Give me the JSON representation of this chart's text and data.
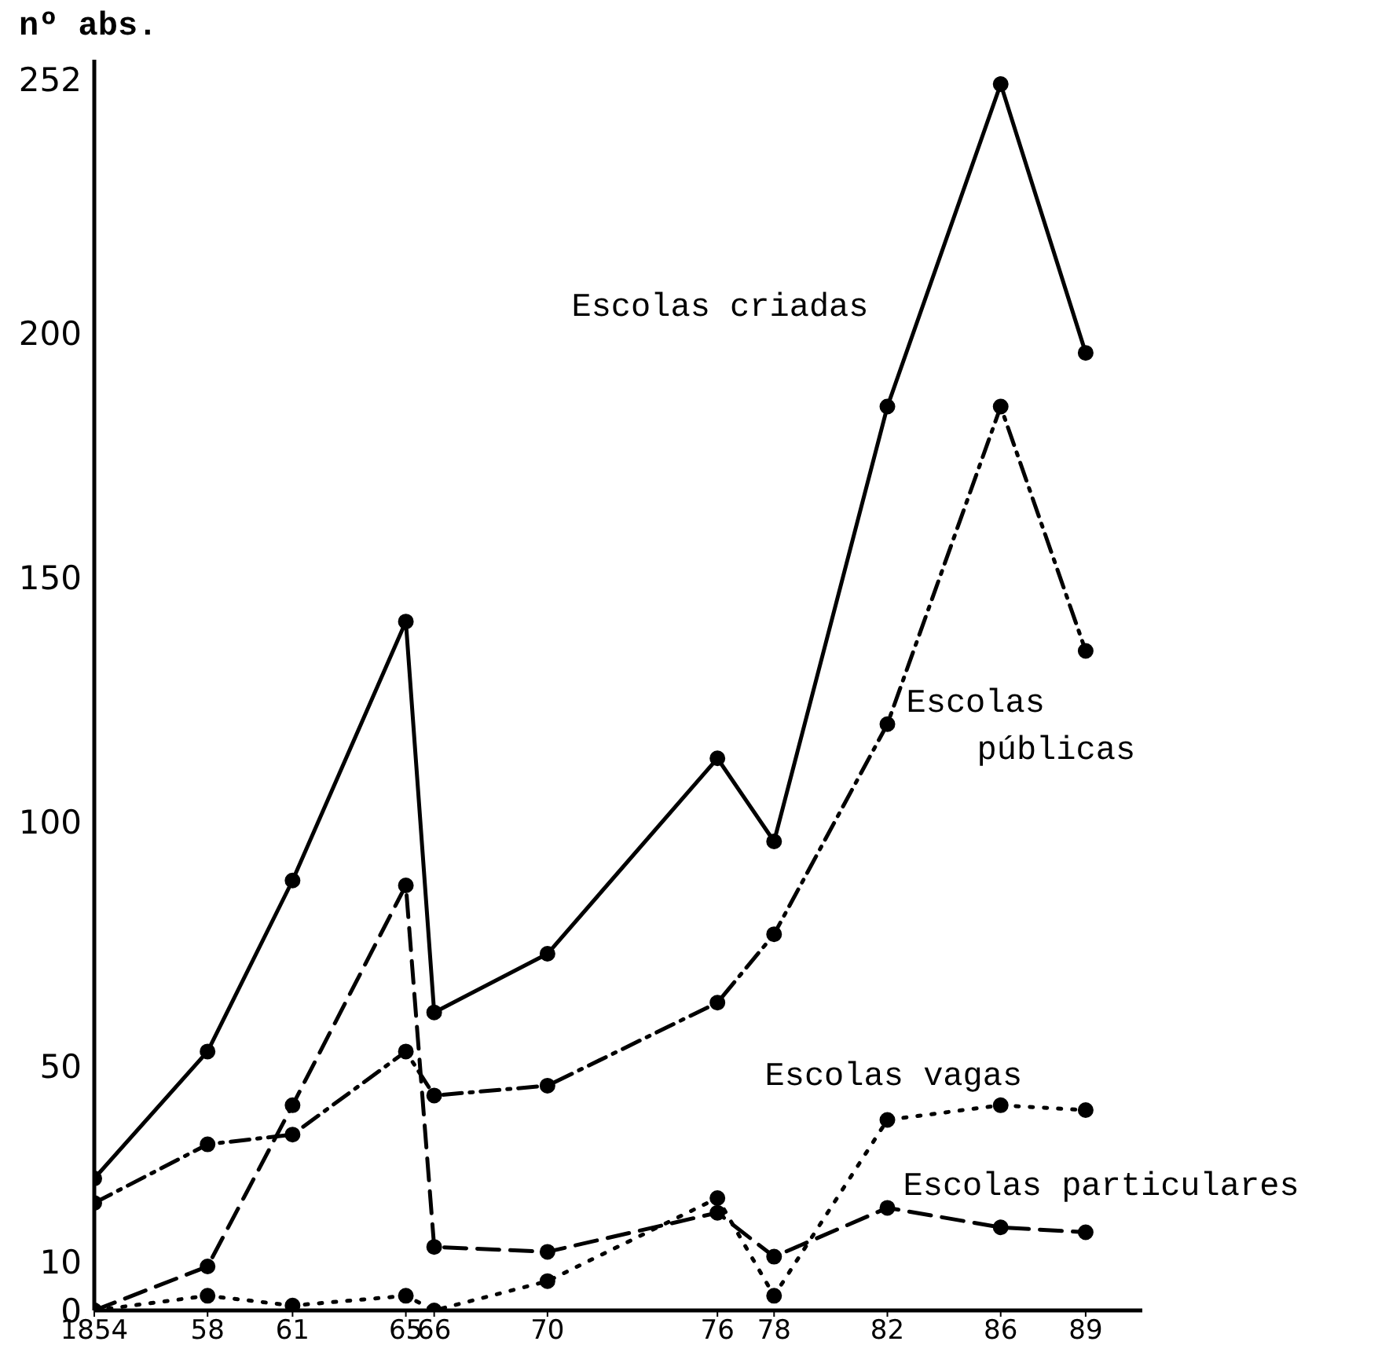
{
  "chart_data": {
    "type": "line",
    "ylabel": "nº abs.",
    "x": [
      1854,
      1858,
      1861,
      1865,
      1866,
      1870,
      1876,
      1878,
      1882,
      1886,
      1889
    ],
    "xlim": [
      1854,
      1891
    ],
    "xticks": [
      1854,
      {
        "value": 1858,
        "label": "58"
      },
      {
        "value": 1861,
        "label": "61"
      },
      {
        "value": 1865,
        "label": "65"
      },
      {
        "value": 1866,
        "label": "66"
      },
      {
        "value": 1870,
        "label": "70"
      },
      {
        "value": 1876,
        "label": "76"
      },
      {
        "value": 1878,
        "label": "78"
      },
      {
        "value": 1882,
        "label": "82"
      },
      {
        "value": 1886,
        "label": "86"
      },
      {
        "value": 1889,
        "label": "89"
      }
    ],
    "ylim": [
      0,
      256
    ],
    "yticks": [
      0,
      10,
      50,
      100,
      150,
      200,
      252
    ],
    "grid": false,
    "legend": false,
    "marker": "circle",
    "series": [
      {
        "name": "Escolas criadas",
        "color": "#000000",
        "line_style": "solid",
        "values": [
          27,
          53,
          88,
          141,
          61,
          73,
          113,
          96,
          185,
          251,
          196
        ]
      },
      {
        "name": "Escolas públicas",
        "color": "#000000",
        "line_style": "dashdot",
        "values": [
          22,
          34,
          36,
          53,
          44,
          46,
          63,
          77,
          120,
          185,
          135
        ]
      },
      {
        "name": "Escolas vagas",
        "color": "#000000",
        "line_style": "dotted",
        "values": [
          0,
          3,
          1,
          3,
          0,
          6,
          23,
          3,
          39,
          42,
          41
        ]
      },
      {
        "name": "Escolas particulares",
        "color": "#000000",
        "line_style": "dashed",
        "values": [
          0,
          9,
          42,
          87,
          13,
          12,
          20,
          11,
          21,
          17,
          16
        ]
      }
    ]
  }
}
